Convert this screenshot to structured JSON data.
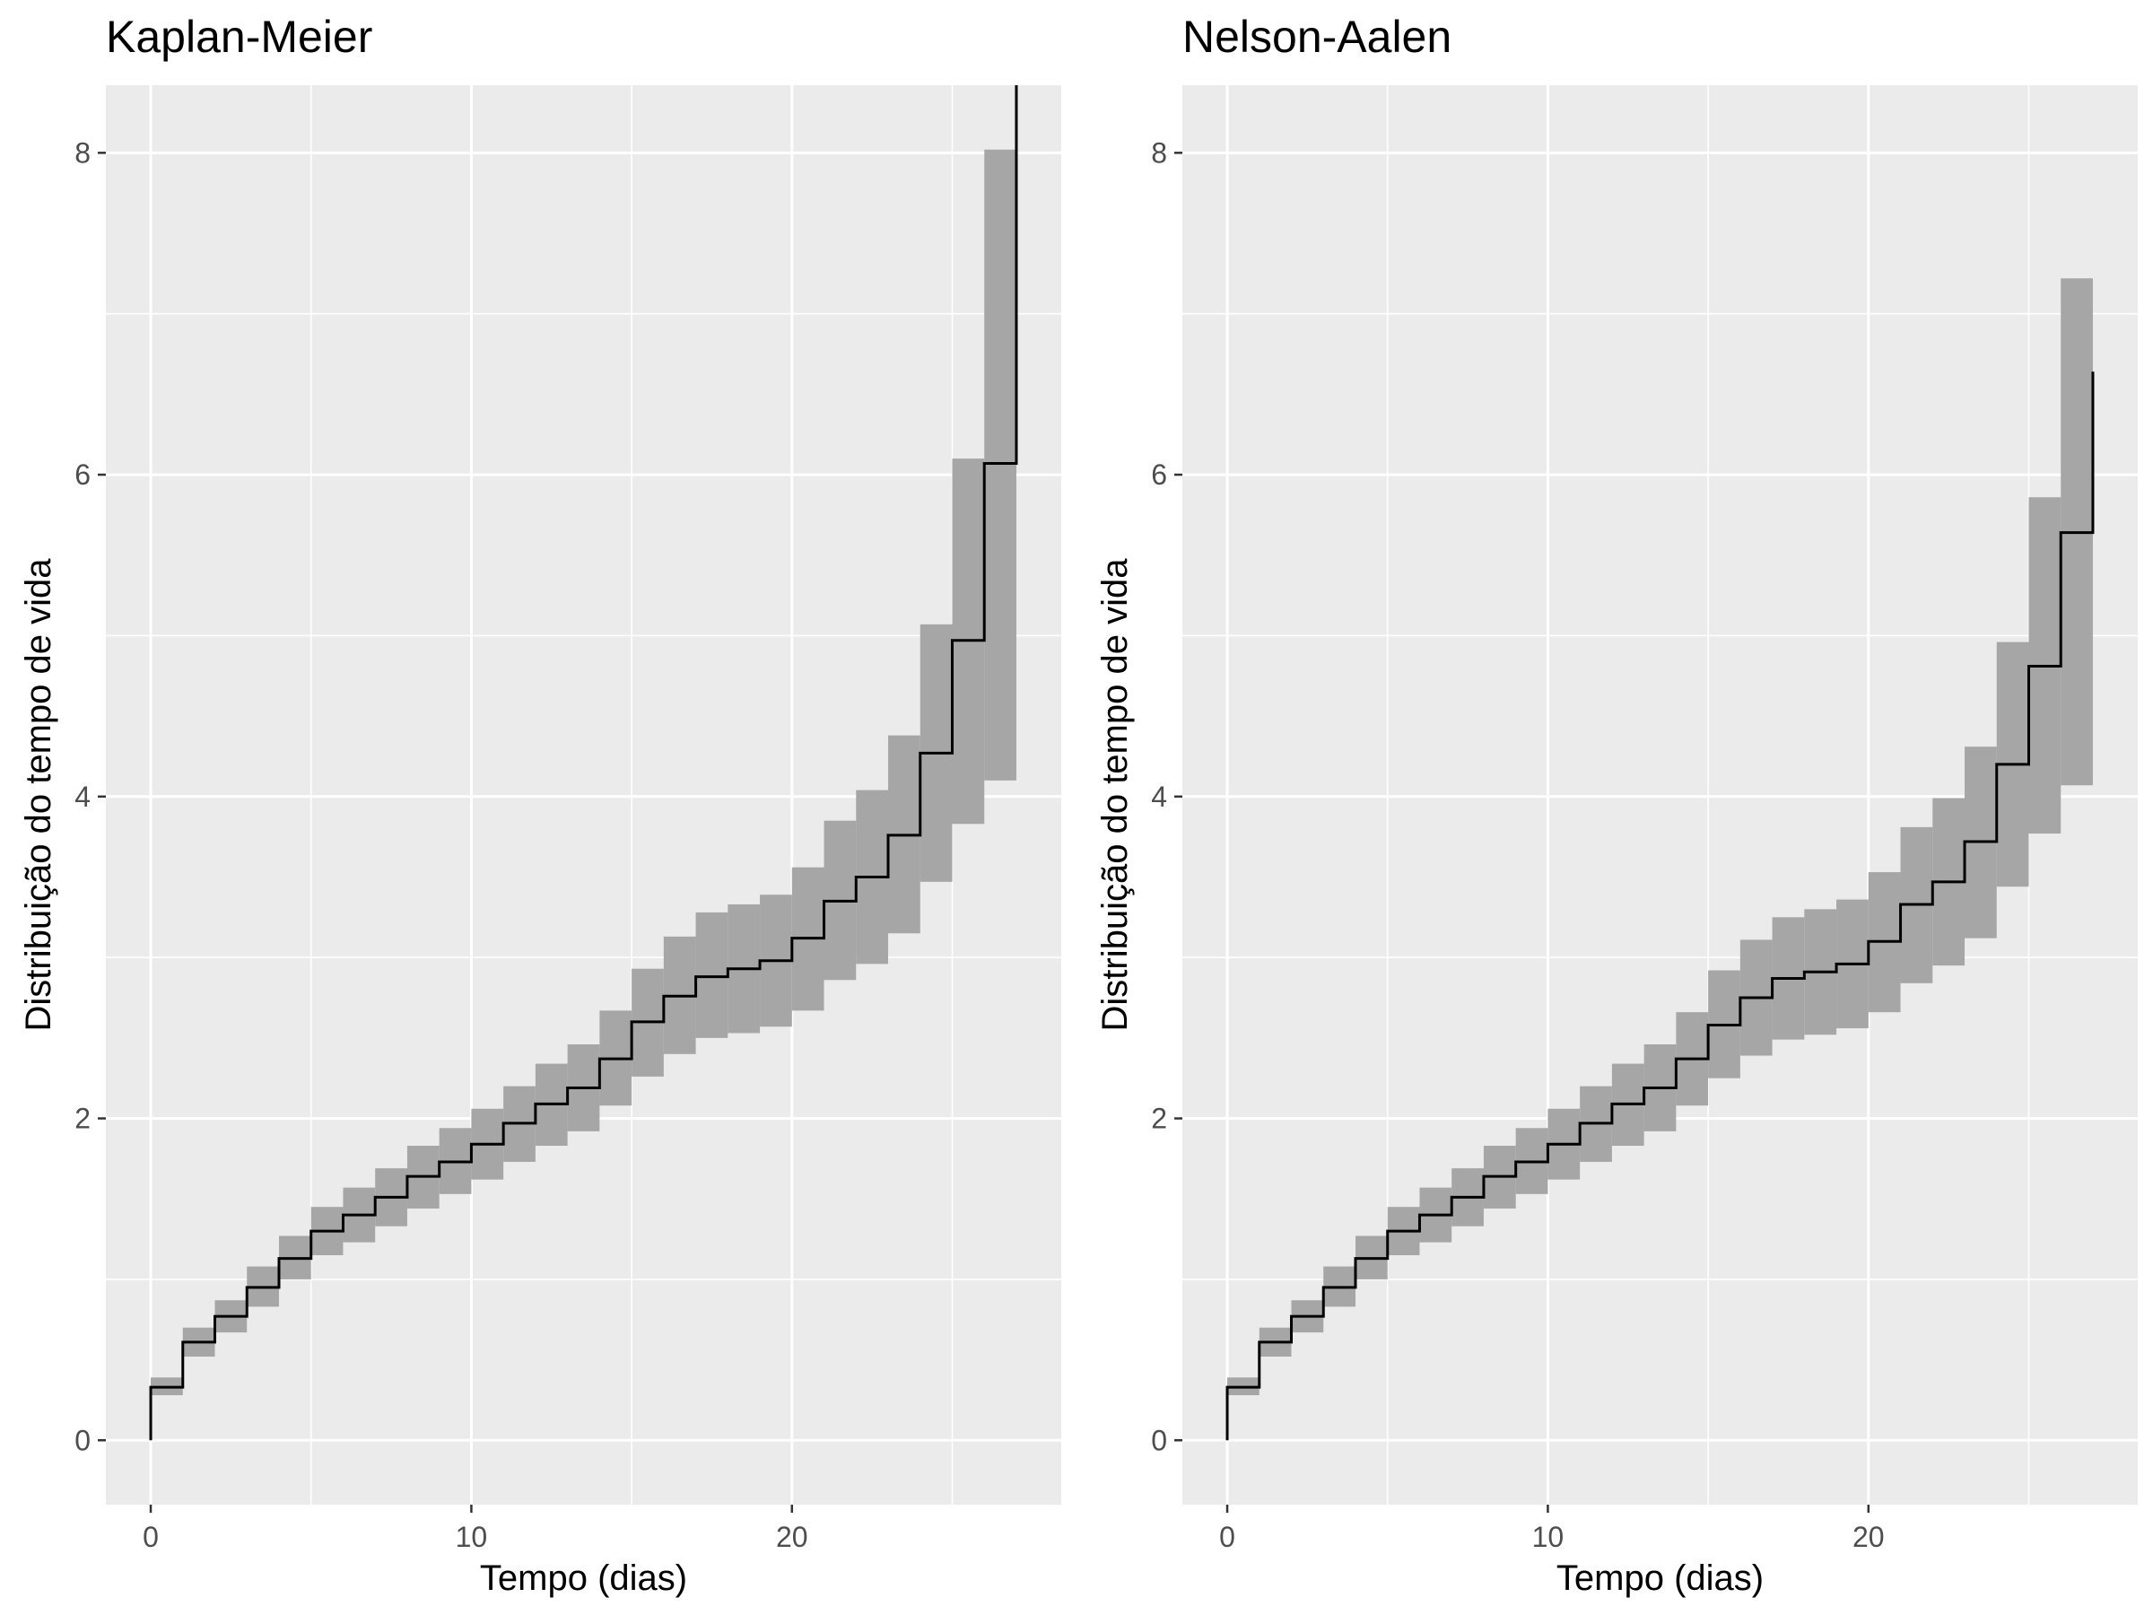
{
  "chart_data": [
    {
      "type": "step",
      "title": "Kaplan-Meier",
      "xlabel": "Tempo (dias)",
      "ylabel": "Distribuição do tempo de vida",
      "xlim": [
        -1.4,
        28.4
      ],
      "ylim": [
        -0.4,
        8.42
      ],
      "xticks": [
        0,
        10,
        20
      ],
      "yticks": [
        0,
        2,
        4,
        6,
        8
      ],
      "grid": true,
      "x": [
        0,
        1,
        2,
        3,
        4,
        5,
        6,
        7,
        8,
        9,
        10,
        11,
        12,
        13,
        14,
        15,
        16,
        17,
        18,
        19,
        20,
        21,
        22,
        23,
        24,
        25,
        26,
        27
      ],
      "estimate": [
        0.33,
        0.61,
        0.77,
        0.95,
        1.13,
        1.3,
        1.4,
        1.51,
        1.64,
        1.73,
        1.84,
        1.97,
        2.09,
        2.19,
        2.37,
        2.6,
        2.76,
        2.88,
        2.93,
        2.98,
        3.12,
        3.35,
        3.5,
        3.76,
        4.27,
        4.97,
        6.07,
        8.42
      ],
      "lower": [
        0.28,
        0.52,
        0.67,
        0.83,
        1.0,
        1.15,
        1.23,
        1.33,
        1.44,
        1.53,
        1.62,
        1.73,
        1.83,
        1.92,
        2.08,
        2.26,
        2.4,
        2.5,
        2.53,
        2.57,
        2.67,
        2.86,
        2.96,
        3.15,
        3.47,
        3.83,
        4.1
      ],
      "upper": [
        0.39,
        0.7,
        0.87,
        1.08,
        1.27,
        1.45,
        1.57,
        1.69,
        1.83,
        1.94,
        2.06,
        2.2,
        2.34,
        2.46,
        2.67,
        2.93,
        3.13,
        3.28,
        3.33,
        3.39,
        3.56,
        3.85,
        4.04,
        4.38,
        5.07,
        6.1,
        8.02
      ]
    },
    {
      "type": "step",
      "title": "Nelson-Aalen",
      "xlabel": "Tempo (dias)",
      "ylabel": "Distribuição do tempo de vida",
      "xlim": [
        -1.4,
        28.4
      ],
      "ylim": [
        -0.4,
        8.42
      ],
      "xticks": [
        0,
        10,
        20
      ],
      "yticks": [
        0,
        2,
        4,
        6,
        8
      ],
      "grid": true,
      "x": [
        0,
        1,
        2,
        3,
        4,
        5,
        6,
        7,
        8,
        9,
        10,
        11,
        12,
        13,
        14,
        15,
        16,
        17,
        18,
        19,
        20,
        21,
        22,
        23,
        24,
        25,
        26,
        27
      ],
      "estimate": [
        0.33,
        0.61,
        0.77,
        0.95,
        1.13,
        1.3,
        1.4,
        1.51,
        1.64,
        1.73,
        1.84,
        1.97,
        2.09,
        2.19,
        2.37,
        2.58,
        2.75,
        2.87,
        2.91,
        2.96,
        3.1,
        3.33,
        3.47,
        3.72,
        4.2,
        4.81,
        5.64,
        6.64
      ],
      "lower": [
        0.28,
        0.52,
        0.67,
        0.83,
        1.0,
        1.15,
        1.23,
        1.33,
        1.44,
        1.53,
        1.62,
        1.73,
        1.83,
        1.92,
        2.08,
        2.25,
        2.39,
        2.49,
        2.52,
        2.56,
        2.66,
        2.84,
        2.95,
        3.12,
        3.44,
        3.77,
        4.07
      ],
      "upper": [
        0.39,
        0.7,
        0.87,
        1.08,
        1.27,
        1.45,
        1.57,
        1.69,
        1.83,
        1.94,
        2.06,
        2.2,
        2.34,
        2.46,
        2.66,
        2.92,
        3.11,
        3.25,
        3.3,
        3.36,
        3.53,
        3.81,
        3.99,
        4.31,
        4.96,
        5.86,
        7.22
      ]
    }
  ]
}
